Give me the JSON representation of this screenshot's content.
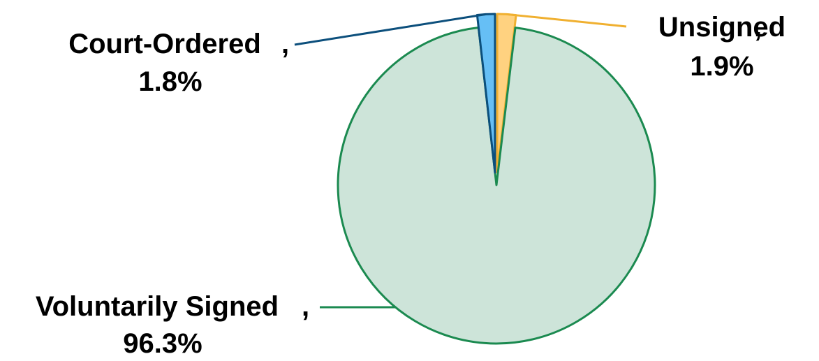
{
  "chart_data": {
    "type": "pie",
    "title": "",
    "start_angle_deg": 0,
    "direction": "clockwise",
    "slices": [
      {
        "label": "Unsigned",
        "value": 1.9,
        "value_label": "1.9%",
        "fill": "#ffd280",
        "stroke": "#f0b030",
        "exploded": true
      },
      {
        "label": "Voluntarily Signed",
        "value": 96.3,
        "value_label": "96.3%",
        "fill": "#cde4d9",
        "stroke": "#1b8a50",
        "exploded": false
      },
      {
        "label": "Court-Ordered",
        "value": 1.8,
        "value_label": "1.8%",
        "fill": "#66bff5",
        "stroke": "#0c4f7c",
        "exploded": true
      }
    ]
  }
}
